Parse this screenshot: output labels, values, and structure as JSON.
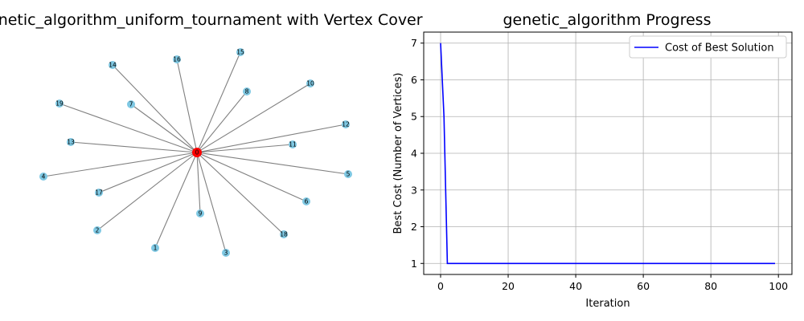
{
  "chart_data": [
    {
      "type": "network",
      "title": "_genetic_algorithm_uniform_tournament with Vertex Cover",
      "center_node": "0",
      "center_color": "#ff0000",
      "node_color": "#7ec8e3",
      "edge_color": "#808080",
      "nodes": [
        "0",
        "1",
        "2",
        "3",
        "4",
        "5",
        "6",
        "7",
        "8",
        "9",
        "10",
        "11",
        "12",
        "13",
        "14",
        "15",
        "16",
        "17",
        "18",
        "19"
      ],
      "edges": [
        [
          "0",
          "1"
        ],
        [
          "0",
          "2"
        ],
        [
          "0",
          "3"
        ],
        [
          "0",
          "4"
        ],
        [
          "0",
          "5"
        ],
        [
          "0",
          "6"
        ],
        [
          "0",
          "7"
        ],
        [
          "0",
          "8"
        ],
        [
          "0",
          "9"
        ],
        [
          "0",
          "10"
        ],
        [
          "0",
          "11"
        ],
        [
          "0",
          "12"
        ],
        [
          "0",
          "13"
        ],
        [
          "0",
          "14"
        ],
        [
          "0",
          "15"
        ],
        [
          "0",
          "16"
        ],
        [
          "0",
          "17"
        ],
        [
          "0",
          "18"
        ],
        [
          "0",
          "19"
        ]
      ],
      "cover": [
        "0"
      ]
    },
    {
      "type": "line",
      "title": "genetic_algorithm Progress",
      "xlabel": "Iteration",
      "ylabel": "Best Cost (Number of Vertices)",
      "xlim": [
        -5,
        104
      ],
      "ylim": [
        0.7,
        7.3
      ],
      "xticks": [
        "0",
        "20",
        "40",
        "60",
        "80",
        "100"
      ],
      "yticks": [
        "1",
        "2",
        "3",
        "4",
        "5",
        "6",
        "7"
      ],
      "grid": true,
      "legend_position": "top-right",
      "series": [
        {
          "name": "Cost of Best Solution",
          "color": "#0000ff",
          "x": [
            0,
            1,
            2,
            99
          ],
          "y": [
            7,
            5,
            1,
            1
          ]
        }
      ]
    }
  ]
}
